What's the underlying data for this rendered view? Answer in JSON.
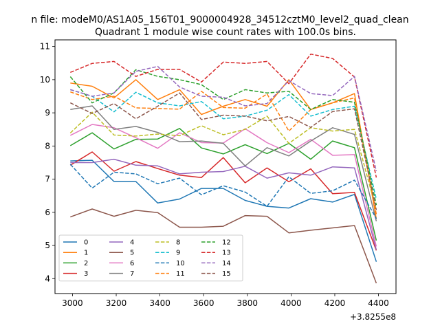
{
  "suptitle": "n file: modeM0/AS1A05_156T01_9000004928_34512cztM0_level2_quad_clean",
  "chart_data": {
    "type": "line",
    "title": "Quadrant 1 module wise count rates with 100.0s bins.",
    "xlabel": "",
    "ylabel": "",
    "x_offset_label": "+3.8255e8",
    "xlim": [
      2920,
      4480
    ],
    "ylim": [
      3.55,
      11.2
    ],
    "xticks": [
      3000,
      3200,
      3400,
      3600,
      3800,
      4000,
      4200,
      4400
    ],
    "yticks": [
      4,
      5,
      6,
      7,
      8,
      9,
      10,
      11
    ],
    "grid": false,
    "legend_position": "lower-left",
    "legend_columns": 4,
    "x": [
      2990,
      3090,
      3190,
      3290,
      3390,
      3490,
      3590,
      3690,
      3790,
      3890,
      3990,
      4090,
      4190,
      4290,
      4390
    ],
    "series": [
      {
        "name": "0",
        "color": "#1f77b4",
        "style": "solid",
        "values": [
          7.55,
          7.57,
          6.93,
          6.93,
          6.28,
          6.4,
          6.72,
          6.72,
          6.36,
          6.18,
          6.13,
          6.41,
          6.31,
          6.54,
          4.51
        ]
      },
      {
        "name": "1",
        "color": "#ff7f0e",
        "style": "solid",
        "values": [
          9.9,
          9.8,
          9.45,
          10.0,
          9.4,
          9.7,
          8.95,
          9.2,
          9.4,
          9.2,
          10.0,
          9.1,
          9.3,
          9.58,
          5.8
        ]
      },
      {
        "name": "2",
        "color": "#2ca02c",
        "style": "solid",
        "values": [
          8.01,
          8.4,
          7.91,
          8.2,
          8.21,
          8.53,
          7.94,
          7.76,
          8.04,
          7.77,
          8.08,
          7.6,
          8.15,
          7.95,
          5.15
        ]
      },
      {
        "name": "3",
        "color": "#d62728",
        "style": "solid",
        "values": [
          7.42,
          7.82,
          7.24,
          7.53,
          7.32,
          7.12,
          7.05,
          7.65,
          6.89,
          7.34,
          6.92,
          7.31,
          6.56,
          6.6,
          4.85
        ]
      },
      {
        "name": "4",
        "color": "#9467bd",
        "style": "solid",
        "values": [
          7.5,
          7.5,
          7.6,
          7.42,
          7.4,
          7.16,
          7.21,
          7.23,
          7.39,
          7.03,
          7.19,
          7.12,
          7.37,
          7.34,
          4.87
        ]
      },
      {
        "name": "5",
        "color": "#8c564b",
        "style": "solid",
        "values": [
          5.86,
          6.1,
          5.88,
          6.06,
          5.99,
          5.55,
          5.55,
          5.58,
          5.9,
          5.88,
          5.38,
          5.46,
          5.53,
          5.6,
          3.86
        ]
      },
      {
        "name": "6",
        "color": "#e377c2",
        "style": "solid",
        "values": [
          8.32,
          8.65,
          8.55,
          8.25,
          7.93,
          8.4,
          8.1,
          8.09,
          8.52,
          8.1,
          7.8,
          8.2,
          7.72,
          7.74,
          4.97
        ]
      },
      {
        "name": "7",
        "color": "#7f7f7f",
        "style": "solid",
        "values": [
          9.1,
          9.21,
          8.5,
          8.59,
          8.41,
          8.13,
          8.15,
          8.08,
          7.4,
          7.95,
          7.7,
          8.15,
          8.55,
          8.35,
          5.73
        ]
      },
      {
        "name": "8",
        "color": "#bcbd22",
        "style": "dashed",
        "values": [
          8.39,
          9.02,
          8.33,
          8.3,
          8.36,
          8.31,
          8.61,
          8.34,
          8.5,
          8.9,
          8.08,
          8.55,
          8.45,
          8.5,
          6.07
        ]
      },
      {
        "name": "9",
        "color": "#17becf",
        "style": "dashed",
        "values": [
          9.7,
          9.5,
          9.03,
          9.62,
          9.3,
          9.21,
          9.34,
          8.82,
          8.9,
          9.08,
          9.55,
          8.9,
          9.1,
          9.2,
          6.4
        ]
      },
      {
        "name": "10",
        "color": "#1f77b4",
        "style": "dashed",
        "values": [
          7.45,
          6.73,
          7.21,
          7.16,
          6.86,
          7.03,
          6.53,
          6.8,
          6.61,
          6.18,
          7.07,
          6.57,
          6.65,
          6.97,
          5.81
        ]
      },
      {
        "name": "11",
        "color": "#ff7f0e",
        "style": "dashed",
        "values": [
          9.63,
          9.4,
          9.5,
          9.15,
          9.13,
          9.11,
          9.65,
          9.16,
          9.14,
          9.57,
          8.45,
          9.1,
          9.3,
          9.45,
          5.94
        ]
      },
      {
        "name": "12",
        "color": "#2ca02c",
        "style": "dashed",
        "values": [
          10.09,
          9.3,
          9.6,
          10.3,
          10.1,
          10.0,
          9.85,
          9.4,
          9.7,
          9.6,
          9.65,
          9.1,
          9.4,
          9.32,
          6.22
        ]
      },
      {
        "name": "13",
        "color": "#d62728",
        "style": "dashed",
        "values": [
          10.22,
          10.49,
          10.55,
          10.1,
          10.31,
          10.31,
          9.93,
          10.53,
          10.49,
          10.55,
          9.88,
          10.77,
          10.64,
          10.08,
          7.05
        ]
      },
      {
        "name": "14",
        "color": "#9467bd",
        "style": "dashed",
        "values": [
          9.7,
          9.5,
          9.6,
          10.25,
          10.4,
          9.78,
          9.5,
          9.47,
          9.21,
          9.28,
          9.97,
          9.58,
          9.52,
          10.1,
          7.24
        ]
      },
      {
        "name": "15",
        "color": "#8c564b",
        "style": "dashed",
        "values": [
          9.3,
          8.98,
          9.28,
          8.82,
          9.2,
          9.6,
          8.8,
          8.93,
          8.9,
          8.76,
          8.89,
          8.56,
          9.04,
          9.12,
          6.07
        ]
      }
    ]
  }
}
